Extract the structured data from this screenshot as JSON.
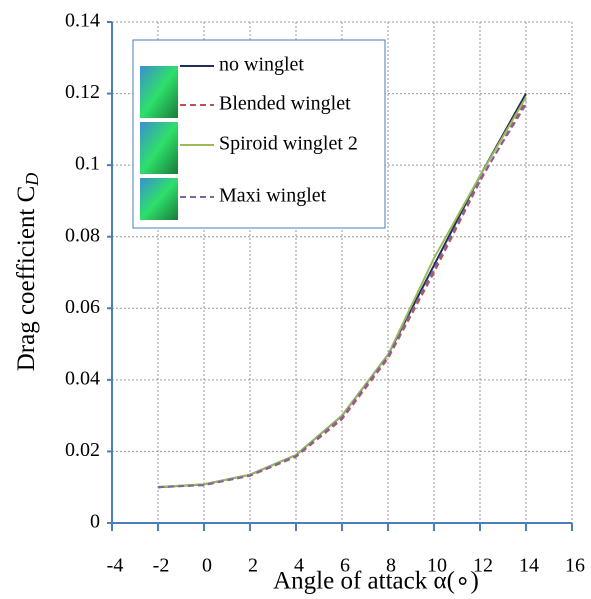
{
  "chart_data": {
    "type": "line",
    "xlabel": "Angle of attack α(∘)",
    "ylabel": "Drag coefficient C",
    "ylabel_subscript": "D",
    "x": [
      -2,
      0,
      2,
      4,
      6,
      8,
      10,
      12,
      14
    ],
    "series": [
      {
        "name": "no winglet",
        "color": "#1f2d5a",
        "dash": "solid",
        "values": [
          0.01,
          0.0108,
          0.0135,
          0.019,
          0.03,
          0.047,
          0.072,
          0.097,
          0.12
        ]
      },
      {
        "name": "Blended winglet",
        "color": "#c0504d",
        "dash": "dashed",
        "values": [
          0.01,
          0.0106,
          0.0132,
          0.0185,
          0.029,
          0.046,
          0.07,
          0.0955,
          0.118
        ]
      },
      {
        "name": "Spiroid winglet 2",
        "color": "#9bbb59",
        "dash": "solid",
        "values": [
          0.0101,
          0.0108,
          0.0135,
          0.019,
          0.03,
          0.047,
          0.074,
          0.097,
          0.119
        ]
      },
      {
        "name": "Maxi winglet",
        "color": "#8064a2",
        "dash": "dashed",
        "values": [
          0.01,
          0.0106,
          0.0133,
          0.0187,
          0.0295,
          0.0465,
          0.071,
          0.096,
          0.117
        ]
      }
    ],
    "xlim": [
      -4,
      16
    ],
    "xticks": [
      -4,
      -2,
      0,
      2,
      4,
      6,
      8,
      10,
      12,
      14,
      16
    ],
    "ylim": [
      0,
      0.14
    ],
    "yticks": [
      0,
      0.02,
      0.04,
      0.06,
      0.08,
      0.1,
      0.12,
      0.14
    ],
    "grid": true
  }
}
